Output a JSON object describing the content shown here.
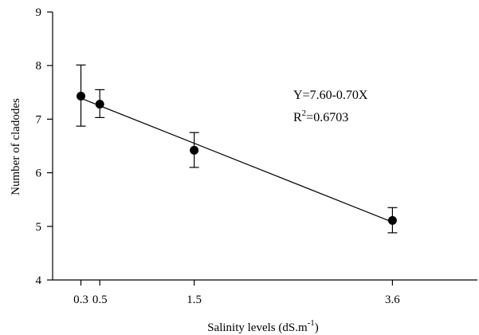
{
  "chart_data": {
    "type": "scatter",
    "xlabel": "Salinity levels (dS.m",
    "xlabel_sup": "-1",
    "xlabel_close": ")",
    "ylabel": "Number of cladodes",
    "xlim": [
      0,
      4.5
    ],
    "ylim": [
      4,
      9
    ],
    "x_ticks": [
      0.3,
      0.5,
      1.5,
      3.6
    ],
    "x_tick_labels": [
      "0.3",
      "0.5",
      "1.5",
      "3.6"
    ],
    "y_ticks": [
      4,
      5,
      6,
      7,
      8,
      9
    ],
    "y_tick_labels": [
      "4",
      "5",
      "6",
      "7",
      "8",
      "9"
    ],
    "points": [
      {
        "x": 0.3,
        "y": 7.43,
        "err_low": 6.87,
        "err_high": 8.01
      },
      {
        "x": 0.5,
        "y": 7.28,
        "err_low": 7.03,
        "err_high": 7.55
      },
      {
        "x": 1.5,
        "y": 6.42,
        "err_low": 6.1,
        "err_high": 6.75
      },
      {
        "x": 3.6,
        "y": 5.11,
        "err_low": 4.88,
        "err_high": 5.35
      }
    ],
    "fit": {
      "x_start": 0.3,
      "x_end": 3.6,
      "intercept": 7.6,
      "slope": -0.7
    },
    "annotations": {
      "equation": "Y=7.60-0.70X",
      "r2_prefix": "R",
      "r2_sup": "2",
      "r2_value": "=0.6703"
    },
    "grid": false
  }
}
